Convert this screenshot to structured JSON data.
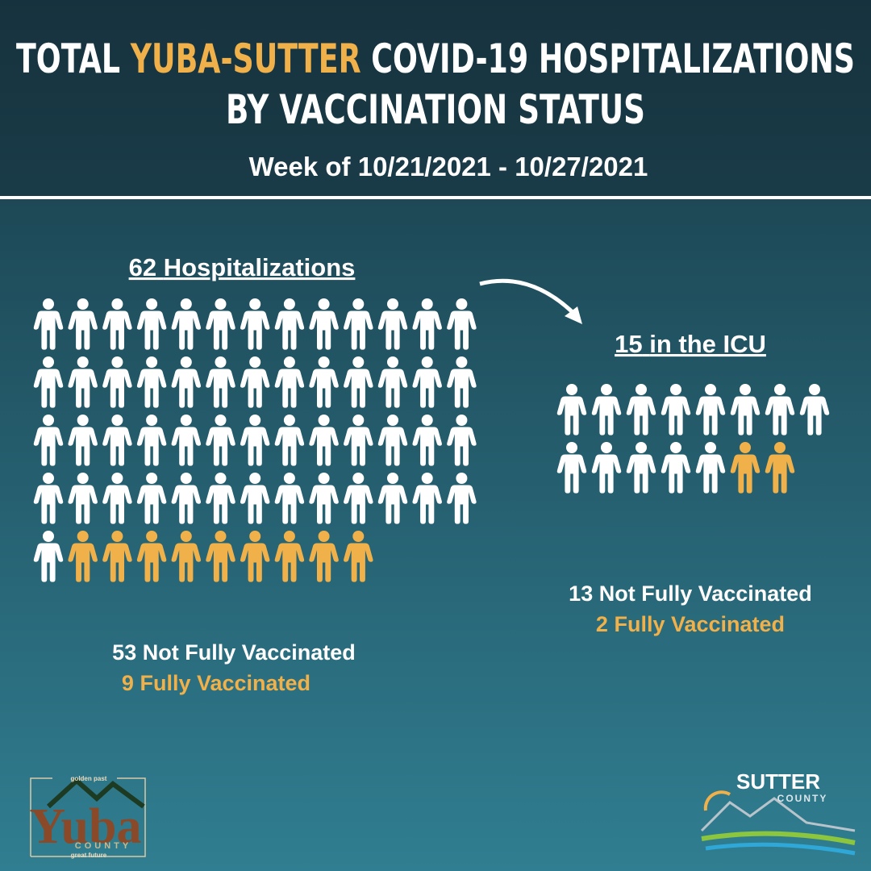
{
  "header": {
    "title_start": "TOTAL",
    "title_highlight": "YUBA-SUTTER",
    "title_end": "COVID-19 HOSPITALIZATIONS",
    "title_line2": "BY VACCINATION STATUS",
    "subtitle": "Week of 10/21/2021 - 10/27/2021"
  },
  "hospitalizations": {
    "total": 62,
    "total_label": "Hospitalizations",
    "not_fully_vaccinated": {
      "count": 53,
      "label": "Not Fully Vaccinated"
    },
    "fully_vaccinated": {
      "count": 9,
      "label": "Fully Vaccinated"
    }
  },
  "icu": {
    "total": 15,
    "total_label": "in the ICU",
    "not_fully_vaccinated": {
      "count": 13,
      "label": "Not Fully Vaccinated"
    },
    "fully_vaccinated": {
      "count": 2,
      "label": "Fully Vaccinated"
    }
  },
  "logos": {
    "yuba_top": "golden past",
    "yuba_name": "Yuba",
    "yuba_county": "COUNTY",
    "yuba_bottom": "great future",
    "sutter_name": "SUTTER",
    "sutter_county": "COUNTY"
  }
}
